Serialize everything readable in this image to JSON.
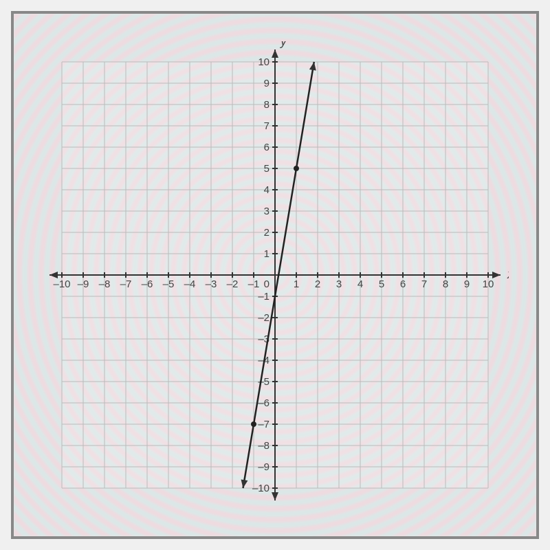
{
  "chart": {
    "type": "line",
    "background_color": "#e8e8e8",
    "grid_color": "#bbb",
    "axis_color": "#333",
    "line_color": "#222",
    "point_color": "#222",
    "label_color": "#444",
    "xlim": [
      -10,
      10
    ],
    "ylim": [
      -10,
      10
    ],
    "xtick_step": 1,
    "ytick_step": 1,
    "x_axis_label": "x",
    "y_axis_label": "y",
    "tick_fontsize": 15,
    "axis_label_fontsize": 18,
    "line_width": 2.5,
    "points": [
      {
        "x": 1,
        "y": 5
      },
      {
        "x": -1,
        "y": -7
      }
    ],
    "line_extent": [
      {
        "x": -1.5,
        "y": -10
      },
      {
        "x": 1.833,
        "y": 10
      }
    ],
    "point_radius": 4,
    "x_ticks": [
      -10,
      -9,
      -8,
      -7,
      -6,
      -5,
      -4,
      -3,
      -2,
      -1,
      1,
      2,
      3,
      4,
      5,
      6,
      7,
      8,
      9,
      10
    ],
    "y_ticks": [
      -10,
      -9,
      -8,
      -7,
      -6,
      -5,
      -4,
      -3,
      -2,
      -1,
      1,
      2,
      3,
      4,
      5,
      6,
      7,
      8,
      9,
      10
    ],
    "origin_label": "0"
  }
}
